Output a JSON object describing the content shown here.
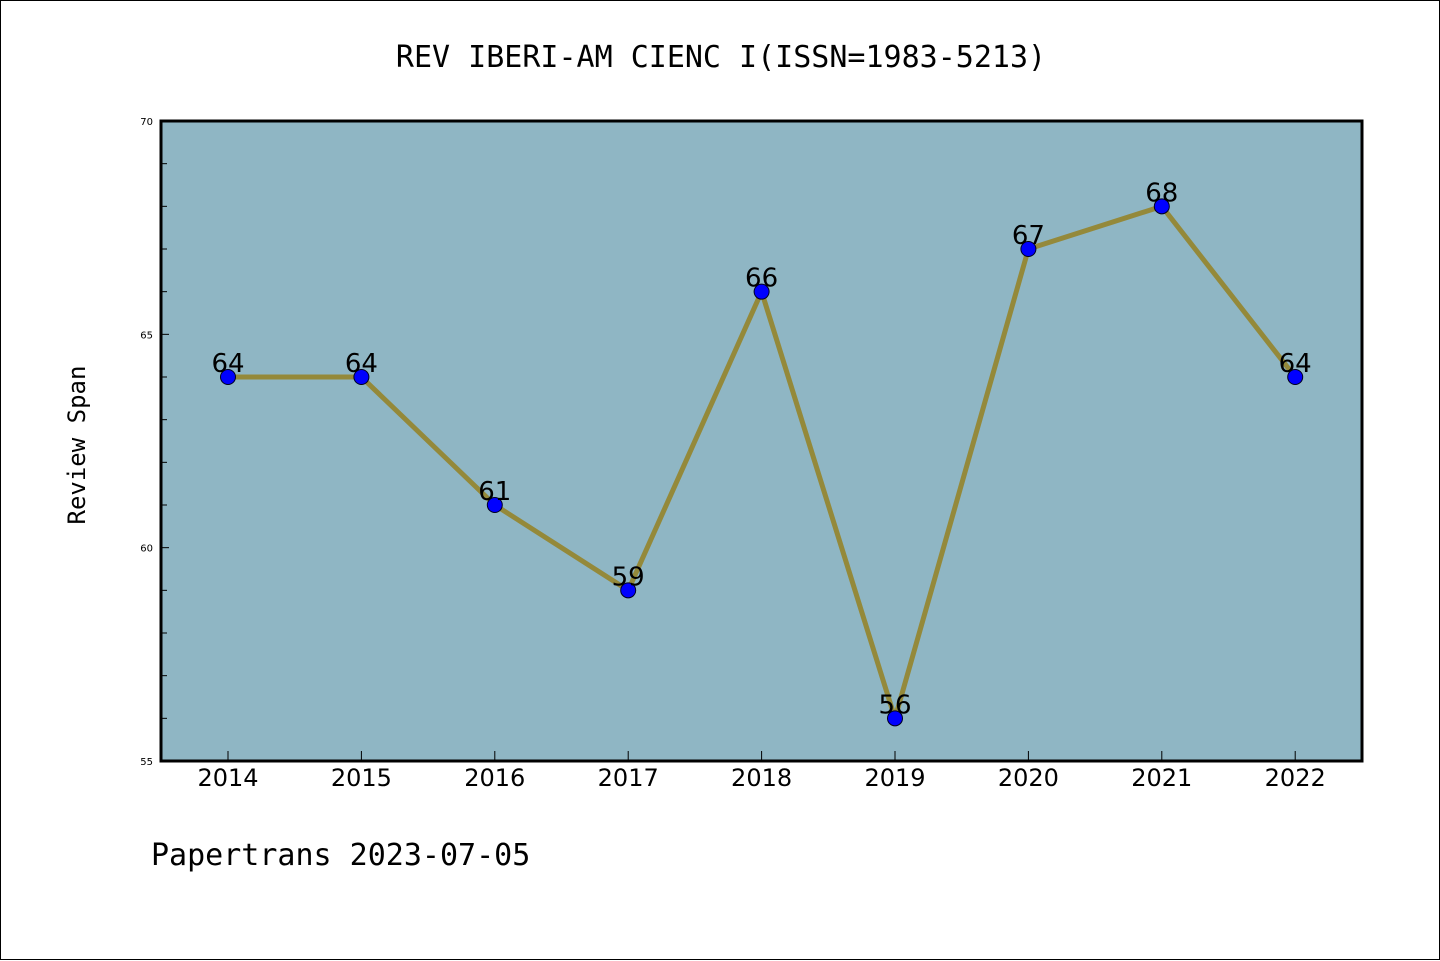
{
  "colors": {
    "plot_background": "#8fb6c4",
    "line": "#94893a",
    "marker": "#0000ff"
  },
  "chart_data": {
    "type": "line",
    "title": "REV IBERI-AM CIENC I(ISSN=1983-5213)",
    "xlabel": "",
    "ylabel": "Review Span",
    "categories": [
      "2014",
      "2015",
      "2016",
      "2017",
      "2018",
      "2019",
      "2020",
      "2021",
      "2022"
    ],
    "series": [
      {
        "values": [
          64,
          64,
          61,
          59,
          66,
          56,
          67,
          68,
          64
        ]
      }
    ],
    "ylim": [
      55,
      70
    ],
    "yticks": [
      55,
      60,
      65,
      70
    ],
    "yminor_step": 1,
    "data_labels": true,
    "grid": false,
    "legend": "none"
  },
  "footer": "Papertrans 2023-07-05"
}
